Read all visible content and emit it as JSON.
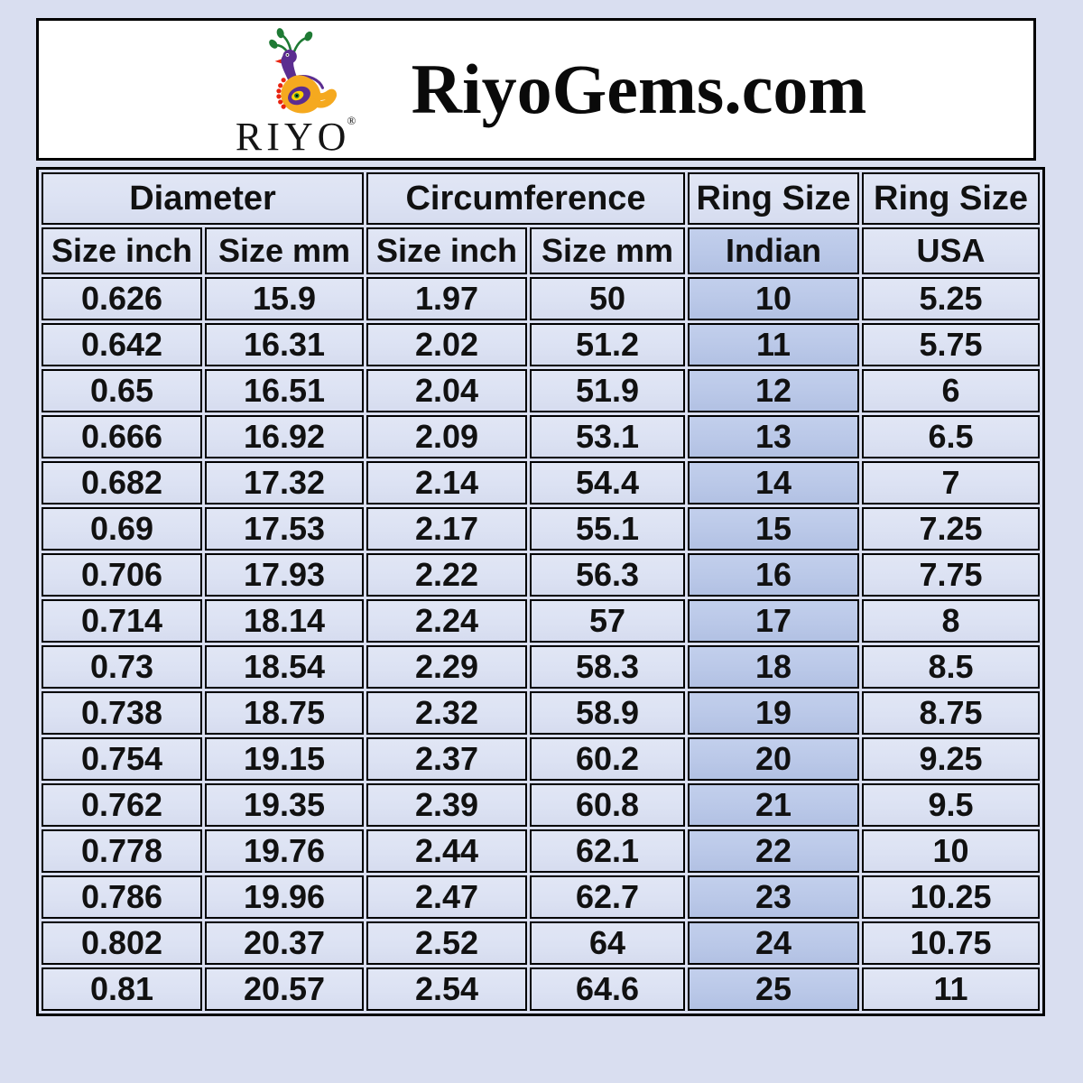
{
  "header": {
    "logo_text": "RIYO",
    "registered_mark": "®",
    "title": "RiyoGems.com"
  },
  "chart_data": {
    "type": "table",
    "title": "RiyoGems.com ring size conversion chart",
    "group_headers": [
      {
        "label": "Diameter",
        "colspan": 2
      },
      {
        "label": "Circumference",
        "colspan": 2
      },
      {
        "label": "Ring Size",
        "colspan": 1
      },
      {
        "label": "Ring Size",
        "colspan": 1
      }
    ],
    "columns": [
      "Size inch",
      "Size mm",
      "Size inch",
      "Size mm",
      "Indian",
      "USA"
    ],
    "highlighted_column": "Indian",
    "highlighted_column_index": 4,
    "rows": [
      [
        "0.626",
        "15.9",
        "1.97",
        "50",
        "10",
        "5.25"
      ],
      [
        "0.642",
        "16.31",
        "2.02",
        "51.2",
        "11",
        "5.75"
      ],
      [
        "0.65",
        "16.51",
        "2.04",
        "51.9",
        "12",
        "6"
      ],
      [
        "0.666",
        "16.92",
        "2.09",
        "53.1",
        "13",
        "6.5"
      ],
      [
        "0.682",
        "17.32",
        "2.14",
        "54.4",
        "14",
        "7"
      ],
      [
        "0.69",
        "17.53",
        "2.17",
        "55.1",
        "15",
        "7.25"
      ],
      [
        "0.706",
        "17.93",
        "2.22",
        "56.3",
        "16",
        "7.75"
      ],
      [
        "0.714",
        "18.14",
        "2.24",
        "57",
        "17",
        "8"
      ],
      [
        "0.73",
        "18.54",
        "2.29",
        "58.3",
        "18",
        "8.5"
      ],
      [
        "0.738",
        "18.75",
        "2.32",
        "58.9",
        "19",
        "8.75"
      ],
      [
        "0.754",
        "19.15",
        "2.37",
        "60.2",
        "20",
        "9.25"
      ],
      [
        "0.762",
        "19.35",
        "2.39",
        "60.8",
        "21",
        "9.5"
      ],
      [
        "0.778",
        "19.76",
        "2.44",
        "62.1",
        "22",
        "10"
      ],
      [
        "0.786",
        "19.96",
        "2.47",
        "62.7",
        "23",
        "10.25"
      ],
      [
        "0.802",
        "20.37",
        "2.52",
        "64",
        "24",
        "10.75"
      ],
      [
        "0.81",
        "20.57",
        "2.54",
        "64.6",
        "25",
        "11"
      ]
    ]
  },
  "colors": {
    "page_bg": "#d9def0",
    "cell_bg": "#dce2f3",
    "highlight_bg": "#bac8e8",
    "border": "#000000",
    "header_box_bg": "#ffffff",
    "logo_orange": "#f5a91f",
    "logo_purple": "#5b2d90",
    "logo_green": "#1e7a34",
    "logo_red": "#e8230f"
  }
}
